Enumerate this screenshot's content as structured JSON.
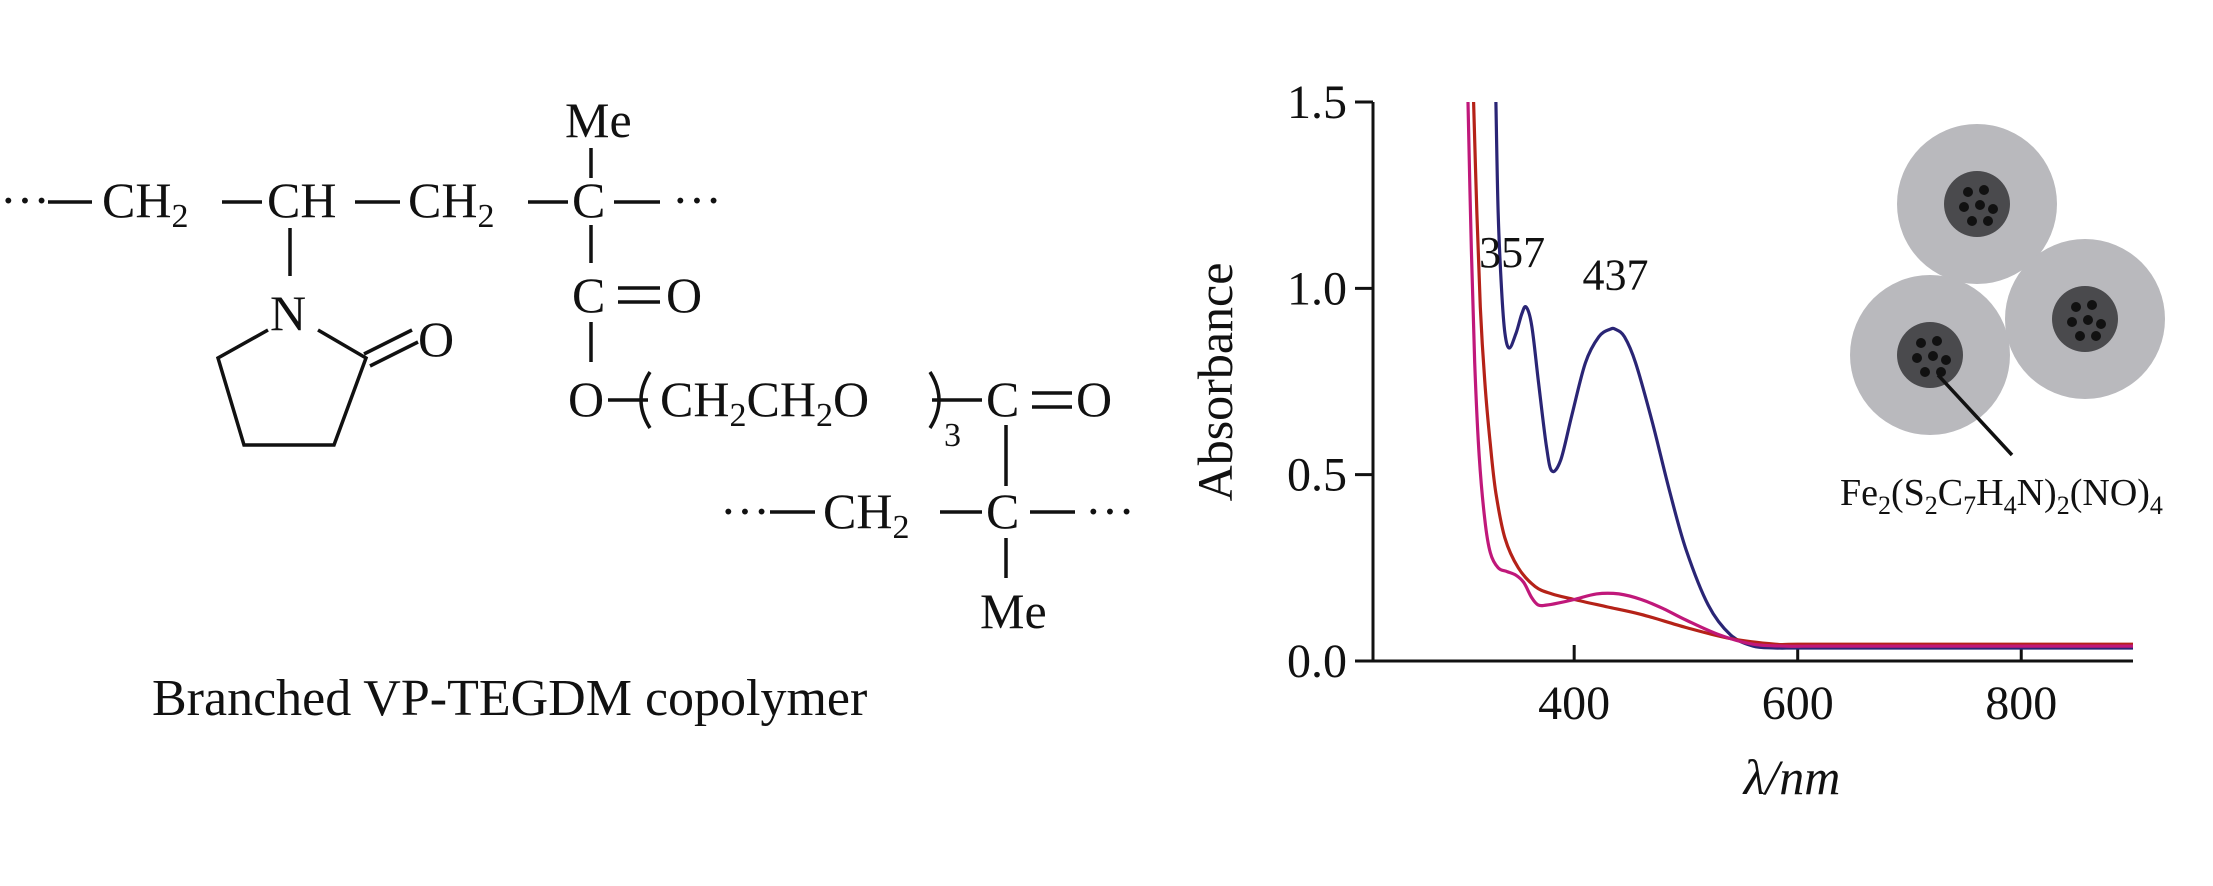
{
  "structure": {
    "caption": "Branched VP-TEGDM copolymer",
    "groups": {
      "me": "Me",
      "ch": "CH",
      "c": "C",
      "n": "N",
      "o": "O",
      "ch2": "CH",
      "sub2": "2",
      "sub3": "3",
      "dots": "···",
      "bond_double": "=",
      "chain_a": "CH",
      "chain_b": "CH",
      "chain_c": "O",
      "paren_open": "(",
      "paren_close": ")"
    }
  },
  "chart_data": {
    "type": "line",
    "title": "",
    "xlabel": "λ/nm",
    "ylabel": "Absorbance",
    "xlim": [
      220,
      900
    ],
    "ylim": [
      0.0,
      1.5
    ],
    "xticks": [
      400,
      600,
      800
    ],
    "yticks": [
      0.0,
      0.5,
      1.0,
      1.5
    ],
    "ytick_labels": [
      "0.0",
      "0.5",
      "1.0",
      "1.5"
    ],
    "grid": false,
    "legend": "none",
    "annotations": [
      {
        "text": "357",
        "x": 357,
        "y": 0.95
      },
      {
        "text": "437",
        "x": 437,
        "y": 0.89
      }
    ],
    "inset_label": {
      "prefix": "Fe",
      "parts": [
        "2",
        "(S",
        "2",
        "C",
        "7",
        "H",
        "4",
        "N)",
        "2",
        "(NO)",
        "4"
      ]
    },
    "series": [
      {
        "color": "#2a2575",
        "x": [
          330,
          332,
          335,
          338,
          342,
          348,
          353,
          357,
          362,
          368,
          375,
          380,
          388,
          398,
          410,
          422,
          432,
          437,
          445,
          455,
          470,
          485,
          500,
          520,
          540,
          560,
          580,
          600,
          650,
          700,
          800,
          900
        ],
        "y": [
          1.5,
          1.2,
          1.0,
          0.88,
          0.84,
          0.88,
          0.93,
          0.95,
          0.9,
          0.75,
          0.58,
          0.51,
          0.54,
          0.66,
          0.8,
          0.87,
          0.89,
          0.89,
          0.87,
          0.8,
          0.64,
          0.46,
          0.3,
          0.15,
          0.07,
          0.04,
          0.035,
          0.035,
          0.035,
          0.035,
          0.035,
          0.035
        ]
      },
      {
        "color": "#b52218",
        "x": [
          310,
          313,
          316,
          320,
          325,
          330,
          338,
          350,
          365,
          380,
          400,
          430,
          460,
          500,
          540,
          580,
          600,
          700,
          800,
          900
        ],
        "y": [
          1.5,
          1.2,
          0.95,
          0.75,
          0.58,
          0.45,
          0.33,
          0.25,
          0.2,
          0.18,
          0.165,
          0.145,
          0.125,
          0.09,
          0.06,
          0.045,
          0.045,
          0.045,
          0.045,
          0.045
        ]
      },
      {
        "color": "#c0187a",
        "x": [
          305,
          308,
          311,
          315,
          320,
          325,
          332,
          340,
          348,
          355,
          362,
          368,
          375,
          385,
          400,
          420,
          440,
          460,
          480,
          500,
          530,
          560,
          590,
          620,
          700,
          800,
          900
        ],
        "y": [
          1.5,
          1.1,
          0.8,
          0.55,
          0.38,
          0.29,
          0.25,
          0.24,
          0.23,
          0.21,
          0.17,
          0.15,
          0.15,
          0.155,
          0.165,
          0.18,
          0.18,
          0.165,
          0.14,
          0.11,
          0.07,
          0.045,
          0.04,
          0.04,
          0.04,
          0.04,
          0.04
        ]
      }
    ]
  }
}
